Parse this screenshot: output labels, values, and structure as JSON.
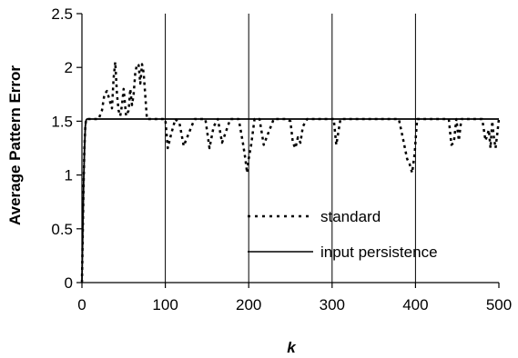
{
  "chart_data": {
    "type": "line",
    "title": "",
    "xlabel": "k",
    "ylabel": "Average Pattern Error",
    "xlim": [
      0,
      500
    ],
    "ylim": [
      0,
      2.5
    ],
    "x_ticks": [
      0,
      100,
      200,
      300,
      400,
      500
    ],
    "y_ticks": [
      0,
      0.5,
      1,
      1.5,
      2,
      2.5
    ],
    "x_tick_labels": [
      "0",
      "100",
      "200",
      "300",
      "400",
      "500"
    ],
    "y_tick_labels": [
      "0",
      "0.5",
      "1",
      "1.5",
      "2",
      "2.5"
    ],
    "grid": {
      "x": true,
      "y": false
    },
    "legend_position": "center-right",
    "series": [
      {
        "name": "standard",
        "style": "dotted",
        "color": "#000000",
        "x": [
          0,
          1,
          2,
          3,
          4,
          5,
          8,
          15,
          20,
          24,
          27,
          30,
          33,
          36,
          38,
          40,
          42,
          44,
          46,
          48,
          50,
          53,
          56,
          58,
          60,
          62,
          64,
          66,
          68,
          70,
          72,
          74,
          78,
          85,
          95,
          100,
          103,
          107,
          112,
          117,
          122,
          135,
          148,
          153,
          158,
          163,
          168,
          178,
          188,
          193,
          196,
          198,
          200,
          203,
          207,
          213,
          218,
          230,
          245,
          250,
          253,
          256,
          259,
          262,
          265,
          270,
          290,
          302,
          305,
          310,
          330,
          380,
          386,
          390,
          393,
          396,
          399,
          402,
          405,
          420,
          440,
          443,
          446,
          449,
          452,
          455,
          460,
          470,
          480,
          484,
          488,
          490,
          492,
          494,
          496,
          498,
          500
        ],
        "y": [
          0,
          0.45,
          0.9,
          1.25,
          1.45,
          1.52,
          1.52,
          1.52,
          1.52,
          1.6,
          1.75,
          1.78,
          1.7,
          1.62,
          1.9,
          2.05,
          1.75,
          1.6,
          1.55,
          1.65,
          1.8,
          1.55,
          1.6,
          1.8,
          1.65,
          1.75,
          1.95,
          2.03,
          2.02,
          1.85,
          2.03,
          1.95,
          1.52,
          1.52,
          1.52,
          1.52,
          1.25,
          1.38,
          1.52,
          1.48,
          1.27,
          1.52,
          1.52,
          1.25,
          1.45,
          1.52,
          1.3,
          1.52,
          1.52,
          1.3,
          1.15,
          1.02,
          1.15,
          1.28,
          1.52,
          1.52,
          1.28,
          1.52,
          1.52,
          1.5,
          1.3,
          1.25,
          1.35,
          1.3,
          1.45,
          1.52,
          1.52,
          1.52,
          1.28,
          1.52,
          1.52,
          1.52,
          1.3,
          1.15,
          1.1,
          1.02,
          1.2,
          1.52,
          1.52,
          1.52,
          1.52,
          1.28,
          1.3,
          1.52,
          1.32,
          1.52,
          1.52,
          1.52,
          1.52,
          1.32,
          1.42,
          1.25,
          1.5,
          1.35,
          1.25,
          1.38,
          1.52
        ]
      },
      {
        "name": "input persistence",
        "style": "solid",
        "color": "#000000",
        "x": [
          0,
          1,
          2,
          3,
          4,
          5,
          6,
          500
        ],
        "y": [
          0,
          0.45,
          0.9,
          1.2,
          1.45,
          1.51,
          1.52,
          1.52
        ]
      }
    ]
  }
}
